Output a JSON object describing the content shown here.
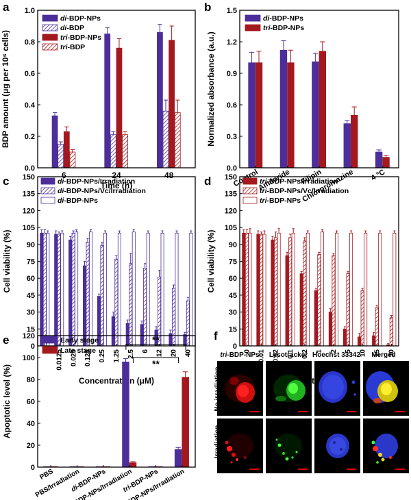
{
  "colors": {
    "di": "#4b2e9a",
    "tri": "#a3191f",
    "axis": "#000000"
  },
  "chart_data": [
    {
      "id": "a",
      "type": "bar",
      "panel_label": "a",
      "xlabel": "Time (h)",
      "ylabel": "BDP amount (μg per 10⁶ cells)",
      "ylim": [
        0,
        1.0
      ],
      "yticks": [
        "0.0",
        "0.2",
        "0.4",
        "0.6",
        "0.8",
        "1.0"
      ],
      "categories": [
        "6",
        "24",
        "48"
      ],
      "legend_position": "top-left",
      "series": [
        {
          "name": "di-BDP-NPs",
          "name_italic": "di",
          "name_rest": "-BDP-NPs",
          "values": [
            0.33,
            0.85,
            0.86
          ],
          "errors": [
            0.02,
            0.04,
            0.05
          ],
          "style": "solid",
          "color": "#4b2e9a"
        },
        {
          "name": "di-BDP",
          "name_italic": "di",
          "name_rest": "-BDP",
          "values": [
            0.15,
            0.21,
            0.36
          ],
          "errors": [
            0.015,
            0.02,
            0.07
          ],
          "style": "hatch",
          "color": "#4b2e9a"
        },
        {
          "name": "tri-BDP-NPs",
          "name_italic": "tri",
          "name_rest": "-BDP-NPs",
          "values": [
            0.23,
            0.76,
            0.81
          ],
          "errors": [
            0.03,
            0.06,
            0.09
          ],
          "style": "solid",
          "color": "#a3191f"
        },
        {
          "name": "tri-BDP",
          "name_italic": "tri",
          "name_rest": "-BDP",
          "values": [
            0.1,
            0.21,
            0.35
          ],
          "errors": [
            0.015,
            0.02,
            0.08
          ],
          "style": "hatch",
          "color": "#a3191f"
        }
      ]
    },
    {
      "id": "b",
      "type": "bar",
      "panel_label": "b",
      "xlabel": "",
      "ylabel": "Normalized absorbance (a.u.)",
      "ylim": [
        0,
        1.5
      ],
      "yticks": [
        "0.0",
        "0.3",
        "0.6",
        "0.9",
        "1.2",
        "1.5"
      ],
      "categories": [
        "Control",
        "Amiloride",
        "Filipin",
        "Chlorpromazine",
        "4 °C"
      ],
      "legend_position": "top-left",
      "series": [
        {
          "name": "di-BDP-NPs",
          "name_italic": "di",
          "name_rest": "-BDP-NPs",
          "values": [
            1.0,
            1.12,
            1.01,
            0.42,
            0.15
          ],
          "errors": [
            0.1,
            0.09,
            0.08,
            0.03,
            0.02
          ],
          "style": "solid",
          "color": "#4b2e9a"
        },
        {
          "name": "tri-BDP-NPs",
          "name_italic": "tri",
          "name_rest": "-BDP-NPs",
          "values": [
            1.0,
            1.0,
            1.11,
            0.5,
            0.1
          ],
          "errors": [
            0.11,
            0.12,
            0.09,
            0.08,
            0.02
          ],
          "style": "solid",
          "color": "#a3191f"
        }
      ]
    },
    {
      "id": "c",
      "type": "bar",
      "panel_label": "c",
      "xlabel": "Concentration (μM)",
      "ylabel": "Cell viability (%)",
      "ylim": [
        0,
        150
      ],
      "yticks": [
        "0",
        "15",
        "30",
        "45",
        "60",
        "75",
        "90",
        "105",
        "120",
        "135",
        "150"
      ],
      "categories": [
        "0",
        "0.0125",
        "0.025",
        "0.125",
        "0.25",
        "1.25",
        "2.5",
        "6",
        "12",
        "20",
        "40"
      ],
      "legend_position": "top-right",
      "series": [
        {
          "name": "di-BDP-NPs/Irradiation",
          "name_italic": "di",
          "name_rest": "-BDP-NPs/Irradiation",
          "values": [
            100,
            99,
            94,
            71,
            44,
            26,
            20,
            19,
            14,
            11,
            10
          ],
          "errors": [
            3,
            3,
            3,
            4,
            2,
            4,
            3,
            3,
            3,
            3,
            2
          ],
          "style": "solid",
          "color": "#4b2e9a"
        },
        {
          "name": "di-BDP-NPs/Vc/Irradiation",
          "name_italic": "di",
          "name_rest": "-BDP-NPs/Vc/Irradiation",
          "values": [
            100,
            99,
            100,
            92,
            89,
            77,
            73,
            69,
            61,
            51,
            40
          ],
          "errors": [
            3,
            2,
            2,
            3,
            3,
            3,
            9,
            4,
            6,
            3,
            3
          ],
          "style": "hatch",
          "color": "#4b2e9a"
        },
        {
          "name": "di-BDP-NPs",
          "name_italic": "di",
          "name_rest": "-BDP-NPs",
          "values": [
            100,
            100,
            101,
            101,
            100,
            100,
            101,
            100,
            100,
            100,
            100
          ],
          "errors": [
            2,
            2,
            2,
            2,
            2,
            2,
            2,
            2,
            2,
            2,
            2
          ],
          "style": "open",
          "color": "#4b2e9a"
        }
      ]
    },
    {
      "id": "d",
      "type": "bar",
      "panel_label": "d",
      "xlabel": "Concentration (μM)",
      "ylabel": "Cell viability (%)",
      "ylim": [
        0,
        150
      ],
      "yticks": [
        "0",
        "15",
        "30",
        "45",
        "60",
        "75",
        "90",
        "105",
        "120",
        "135",
        "150"
      ],
      "categories": [
        "0",
        "0.01",
        "0.02",
        "0.1",
        "0.2",
        "1",
        "2",
        "5",
        "10",
        "15",
        "30"
      ],
      "legend_position": "top-right",
      "series": [
        {
          "name": "tri-BDP-NPs/Irradiation",
          "name_italic": "tri",
          "name_rest": "-BDP-NPs/Irradiation",
          "values": [
            100,
            99,
            94,
            80,
            64,
            49,
            30,
            15,
            8,
            9,
            1
          ],
          "errors": [
            3,
            3,
            3,
            3,
            2,
            2,
            3,
            2,
            3,
            3,
            1
          ],
          "style": "solid",
          "color": "#a3191f"
        },
        {
          "name": "tri-BDP-NPs/Vc/Irradiation",
          "name_italic": "tri",
          "name_rest": "-BDP-NPs/Vc/Irradiation",
          "values": [
            100,
            99,
            96,
            96,
            93,
            81,
            80,
            64,
            49,
            34,
            25
          ],
          "errors": [
            3,
            2,
            5,
            3,
            3,
            2,
            2,
            2,
            2,
            2,
            2
          ],
          "style": "hatch",
          "color": "#a3191f"
        },
        {
          "name": "tri-BDP-NPs",
          "name_italic": "tri",
          "name_rest": "-BDP-NPs",
          "values": [
            100,
            99,
            100,
            100,
            100,
            101,
            100,
            100,
            100,
            100,
            100
          ],
          "errors": [
            4,
            3,
            4,
            4,
            2,
            2,
            2,
            2,
            2,
            2,
            2
          ],
          "style": "open",
          "color": "#a3191f"
        }
      ]
    },
    {
      "id": "e",
      "type": "bar",
      "panel_label": "e",
      "xlabel": "",
      "ylabel": "Apoptotic level (%)",
      "ylim": [
        0,
        120
      ],
      "yticks": [
        "0",
        "20",
        "40",
        "60",
        "80",
        "100",
        "120"
      ],
      "categories": [
        {
          "italic": "",
          "rest": "PBS"
        },
        {
          "italic": "",
          "rest": "PBS/Irradiation"
        },
        {
          "italic": "di",
          "rest": "-BDP-NPs"
        },
        {
          "italic": "di",
          "rest": "-BDP-NPs/Irradiation"
        },
        {
          "italic": "tri",
          "rest": "-BDP-NPs"
        },
        {
          "italic": "tri",
          "rest": "-BDP-NPs/Irradiation"
        }
      ],
      "legend_position": "top-left",
      "series": [
        {
          "name": "Early stage",
          "name_italic": "",
          "name_rest": "Early stage",
          "values": [
            0.5,
            0.5,
            0.5,
            96,
            0.5,
            16
          ],
          "errors": [
            0,
            0,
            0,
            3,
            0,
            2
          ],
          "style": "solid",
          "color": "#4b2e9a"
        },
        {
          "name": "Late stage",
          "name_italic": "",
          "name_rest": "Late stage",
          "values": [
            0.5,
            0.5,
            0.5,
            4,
            0.5,
            82
          ],
          "errors": [
            0,
            0,
            0,
            1,
            0,
            5
          ],
          "style": "solid",
          "color": "#a3191f"
        }
      ],
      "annotations": [
        {
          "text": "**",
          "from_category": 3,
          "to_category": 5,
          "y": 112
        },
        {
          "text": "**",
          "from_category": 3,
          "to_category": 5,
          "y": 100
        }
      ]
    }
  ],
  "panel_f": {
    "panel_label": "f",
    "columns": [
      {
        "italic": "tri",
        "rest": "-BDP-NPs"
      },
      {
        "italic": "",
        "rest": "Lysotracker"
      },
      {
        "italic": "",
        "rest": "Hoechst 33342"
      },
      {
        "italic": "",
        "rest": "Merged"
      }
    ],
    "rows": [
      "No irradiation",
      "Irradiation"
    ]
  }
}
